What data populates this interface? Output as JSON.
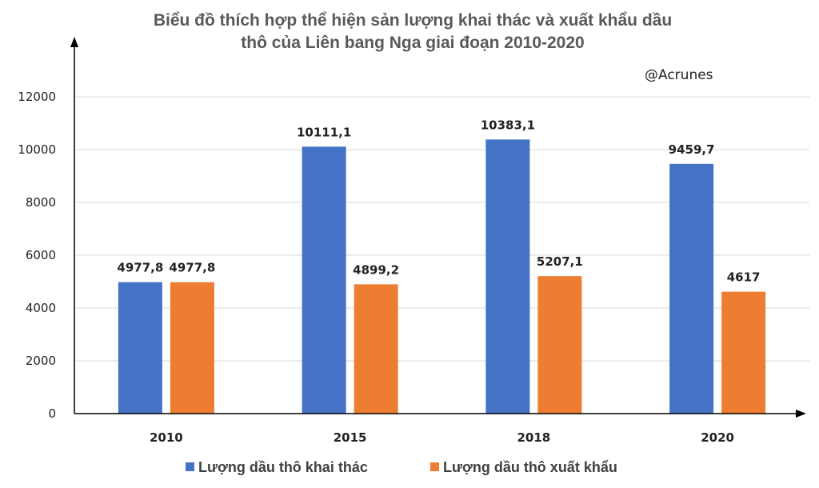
{
  "chart_data": {
    "type": "bar",
    "title": "Biểu đồ thích hợp thể hiện sản lượng khai thác và xuất khẩu dầu thô của Liên bang Nga giai đoạn 2010-2020",
    "title_lines": [
      "Biểu đồ thích hợp thể hiện sản lượng khai thác và xuất khẩu dầu",
      "thô của Liên bang Nga giai đoạn 2010-2020"
    ],
    "watermark": "@Acrunes",
    "categories": [
      "2010",
      "2015",
      "2018",
      "2020"
    ],
    "series": [
      {
        "name": "Lượng dầu thô khai thác",
        "color": "#4472C4",
        "values": [
          4977.8,
          10111.1,
          10383.1,
          9459.7
        ],
        "labels": [
          "4977,8",
          "10111,1",
          "10383,1",
          "9459,7"
        ]
      },
      {
        "name": "Lượng dầu thô xuất khẩu",
        "color": "#ED7D31",
        "values": [
          4977.8,
          4899.2,
          5207.1,
          4617
        ],
        "labels": [
          "4977,8",
          "4899,2",
          "5207,1",
          "4617"
        ]
      }
    ],
    "ylim": [
      0,
      12000
    ],
    "yticks": [
      "0",
      "2000",
      "4000",
      "6000",
      "8000",
      "10000",
      "12000"
    ],
    "xlabel": "",
    "ylabel": "",
    "grid": true,
    "legend_position": "bottom"
  }
}
